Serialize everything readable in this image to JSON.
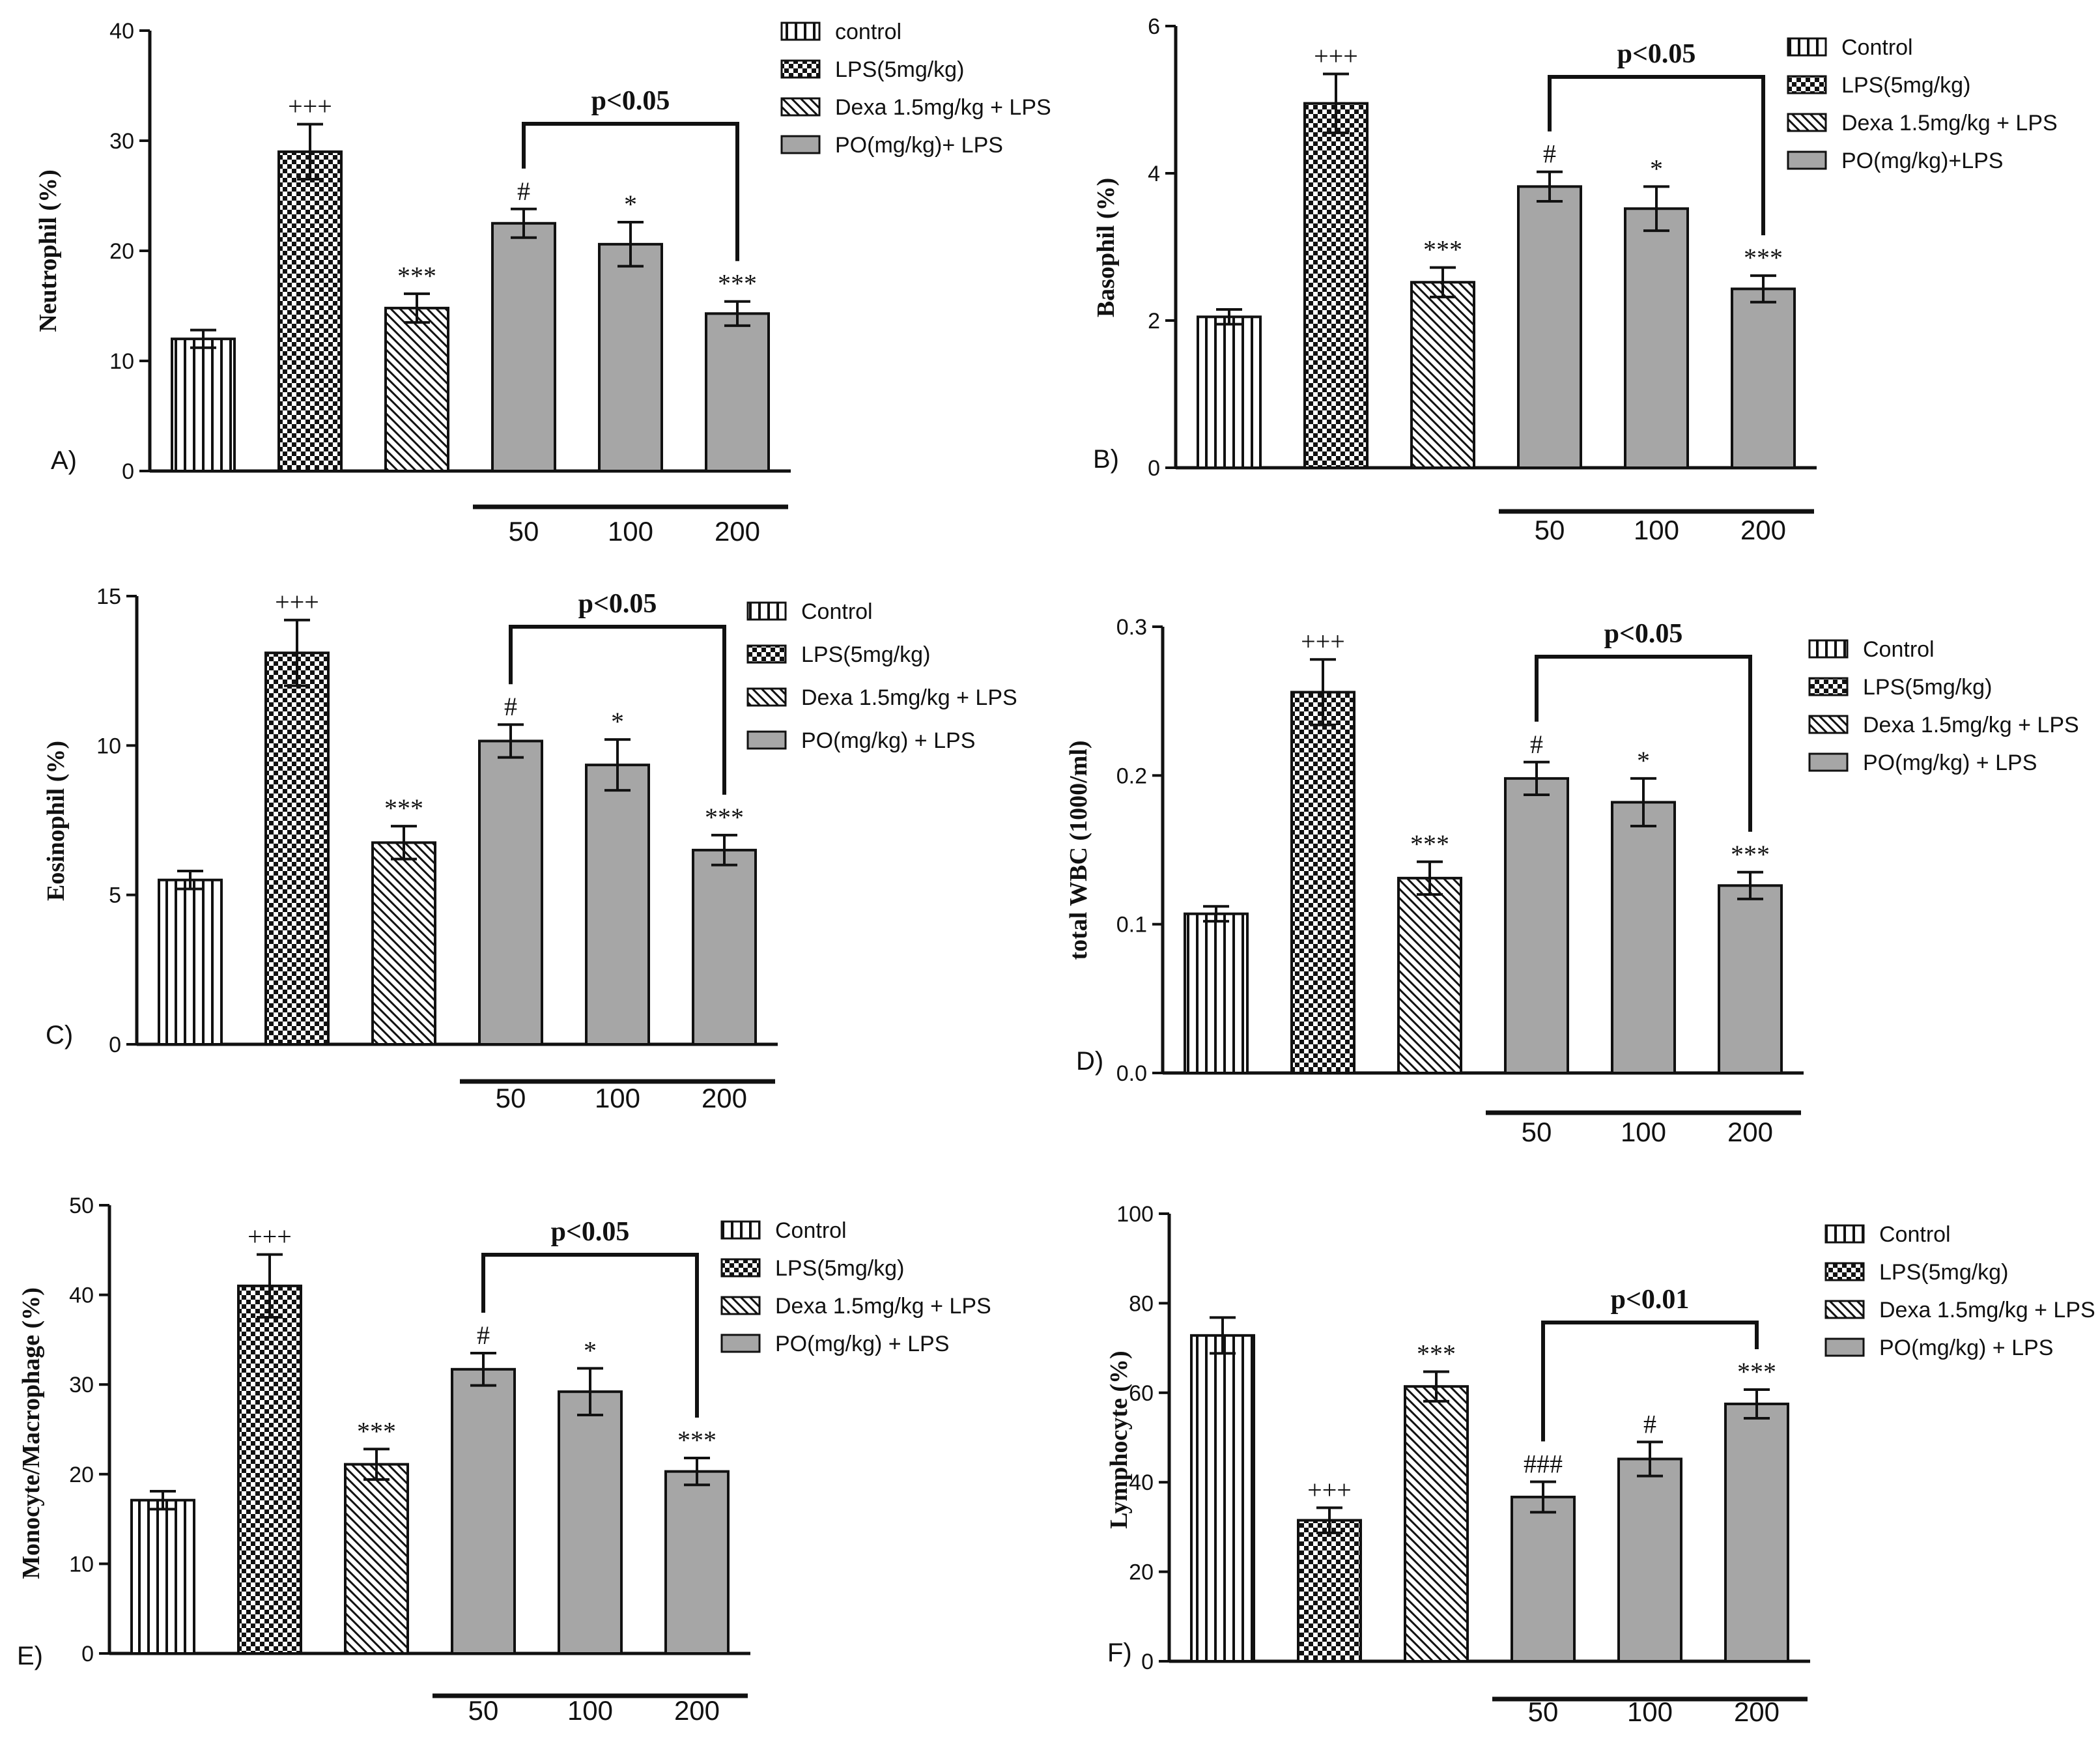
{
  "colors": {
    "ink": "#111111",
    "po_fill": "#a6a6a6",
    "background": "#ffffff"
  },
  "fill_patterns": [
    "vertical-stripes-pattern",
    "checker-pattern",
    "diagonal-hatch-pattern",
    "solid-gray"
  ],
  "chart_data": [
    {
      "type": "bar",
      "panel": "A)",
      "ylabel": "Neutrophil (%)",
      "ylim": [
        0,
        40
      ],
      "yticks": [
        "0",
        "10",
        "20",
        "30",
        "40"
      ],
      "categories": [
        "control",
        "LPS(5mg/kg)",
        "Dexa 1.5mg/kg + LPS",
        "PO 50",
        "PO 100",
        "PO 200"
      ],
      "values": [
        12,
        29,
        14.8,
        22.5,
        20.6,
        14.3
      ],
      "errors": [
        0.8,
        2.5,
        1.3,
        1.3,
        2,
        1.1
      ],
      "significance": [
        "",
        "+++",
        "***",
        "#",
        "*",
        "***"
      ],
      "bracket": {
        "from": 3,
        "to": 5,
        "label": "p<0.05"
      },
      "dose_labels": [
        "50",
        "100",
        "200"
      ],
      "legend": [
        "control",
        "LPS(5mg/kg)",
        "Dexa 1.5mg/kg + LPS",
        "PO(mg/kg)+ LPS"
      ]
    },
    {
      "type": "bar",
      "panel": "B)",
      "ylabel": "Basophil (%)",
      "ylim": [
        0,
        6
      ],
      "yticks": [
        "0",
        "2",
        "4",
        "6"
      ],
      "categories": [
        "Control",
        "LPS(5mg/kg)",
        "Dexa 1.5mg/kg + LPS",
        "PO 50",
        "PO 100",
        "PO 200"
      ],
      "values": [
        2.05,
        4.95,
        2.52,
        3.82,
        3.52,
        2.43
      ],
      "errors": [
        0.1,
        0.4,
        0.2,
        0.2,
        0.3,
        0.18
      ],
      "significance": [
        "",
        "+++",
        "***",
        "#",
        "*",
        "***"
      ],
      "bracket": {
        "from": 3,
        "to": 5,
        "label": "p<0.05"
      },
      "dose_labels": [
        "50",
        "100",
        "200"
      ],
      "legend": [
        "Control",
        "LPS(5mg/kg)",
        "Dexa 1.5mg/kg + LPS",
        "PO(mg/kg)+LPS"
      ]
    },
    {
      "type": "bar",
      "panel": "C)",
      "ylabel": "Eosinophil (%)",
      "ylim": [
        0,
        15
      ],
      "yticks": [
        "0",
        "5",
        "10",
        "15"
      ],
      "categories": [
        "Control",
        "LPS(5mg/kg)",
        "Dexa 1.5mg/kg + LPS",
        "PO 50",
        "PO 100",
        "PO 200"
      ],
      "values": [
        5.5,
        13.1,
        6.75,
        10.15,
        9.35,
        6.5
      ],
      "errors": [
        0.3,
        1.1,
        0.55,
        0.55,
        0.85,
        0.5
      ],
      "significance": [
        "",
        "+++",
        "***",
        "#",
        "*",
        "***"
      ],
      "bracket": {
        "from": 3,
        "to": 5,
        "label": "p<0.05"
      },
      "dose_labels": [
        "50",
        "100",
        "200"
      ],
      "legend": [
        "Control",
        "LPS(5mg/kg)",
        "Dexa 1.5mg/kg + LPS",
        "PO(mg/kg) + LPS"
      ]
    },
    {
      "type": "bar",
      "panel": "D)",
      "ylabel": "total WBC (1000/ml)",
      "ylim": [
        0,
        0.3
      ],
      "yticks": [
        "0.0",
        "0.1",
        "0.2",
        "0.3"
      ],
      "categories": [
        "Control",
        "LPS(5mg/kg)",
        "Dexa 1.5mg/kg + LPS",
        "PO 50",
        "PO 100",
        "PO 200"
      ],
      "values": [
        0.107,
        0.256,
        0.131,
        0.198,
        0.182,
        0.126
      ],
      "errors": [
        0.005,
        0.022,
        0.011,
        0.011,
        0.016,
        0.009
      ],
      "significance": [
        "",
        "+++",
        "***",
        "#",
        "*",
        "***"
      ],
      "bracket": {
        "from": 3,
        "to": 5,
        "label": "p<0.05"
      },
      "dose_labels": [
        "50",
        "100",
        "200"
      ],
      "legend": [
        "Control",
        "LPS(5mg/kg)",
        "Dexa 1.5mg/kg + LPS",
        "PO(mg/kg) + LPS"
      ]
    },
    {
      "type": "bar",
      "panel": "E)",
      "ylabel": "Monocyte/Macrophage (%)",
      "ylim": [
        0,
        50
      ],
      "yticks": [
        "0",
        "10",
        "20",
        "30",
        "40",
        "50"
      ],
      "categories": [
        "Control",
        "LPS(5mg/kg)",
        "Dexa 1.5mg/kg + LPS",
        "PO 50",
        "PO 100",
        "PO 200"
      ],
      "values": [
        17.1,
        41,
        21.1,
        31.7,
        29.2,
        20.3
      ],
      "errors": [
        1,
        3.5,
        1.7,
        1.8,
        2.6,
        1.5
      ],
      "significance": [
        "",
        "+++",
        "***",
        "#",
        "*",
        "***"
      ],
      "bracket": {
        "from": 3,
        "to": 5,
        "label": "p<0.05"
      },
      "dose_labels": [
        "50",
        "100",
        "200"
      ],
      "legend": [
        "Control",
        "LPS(5mg/kg)",
        "Dexa 1.5mg/kg + LPS",
        "PO(mg/kg) + LPS"
      ]
    },
    {
      "type": "bar",
      "panel": "F)",
      "ylabel": "Lymphocyte (%)",
      "ylim": [
        0,
        100
      ],
      "yticks": [
        "0",
        "20",
        "40",
        "60",
        "80",
        "100"
      ],
      "categories": [
        "Control",
        "LPS(5mg/kg)",
        "Dexa 1.5mg/kg + LPS",
        "PO 50",
        "PO 100",
        "PO 200"
      ],
      "values": [
        72.8,
        31.5,
        61.4,
        36.7,
        45.2,
        57.5
      ],
      "errors": [
        4,
        2.8,
        3.3,
        3.4,
        3.8,
        3.2
      ],
      "significance": [
        "",
        "+++",
        "***",
        "###",
        "#",
        "***"
      ],
      "bracket": {
        "from": 3,
        "to": 5,
        "label": "p<0.01"
      },
      "dose_labels": [
        "50",
        "100",
        "200"
      ],
      "legend": [
        "Control",
        "LPS(5mg/kg)",
        "Dexa 1.5mg/kg + LPS",
        "PO(mg/kg) + LPS"
      ]
    }
  ]
}
